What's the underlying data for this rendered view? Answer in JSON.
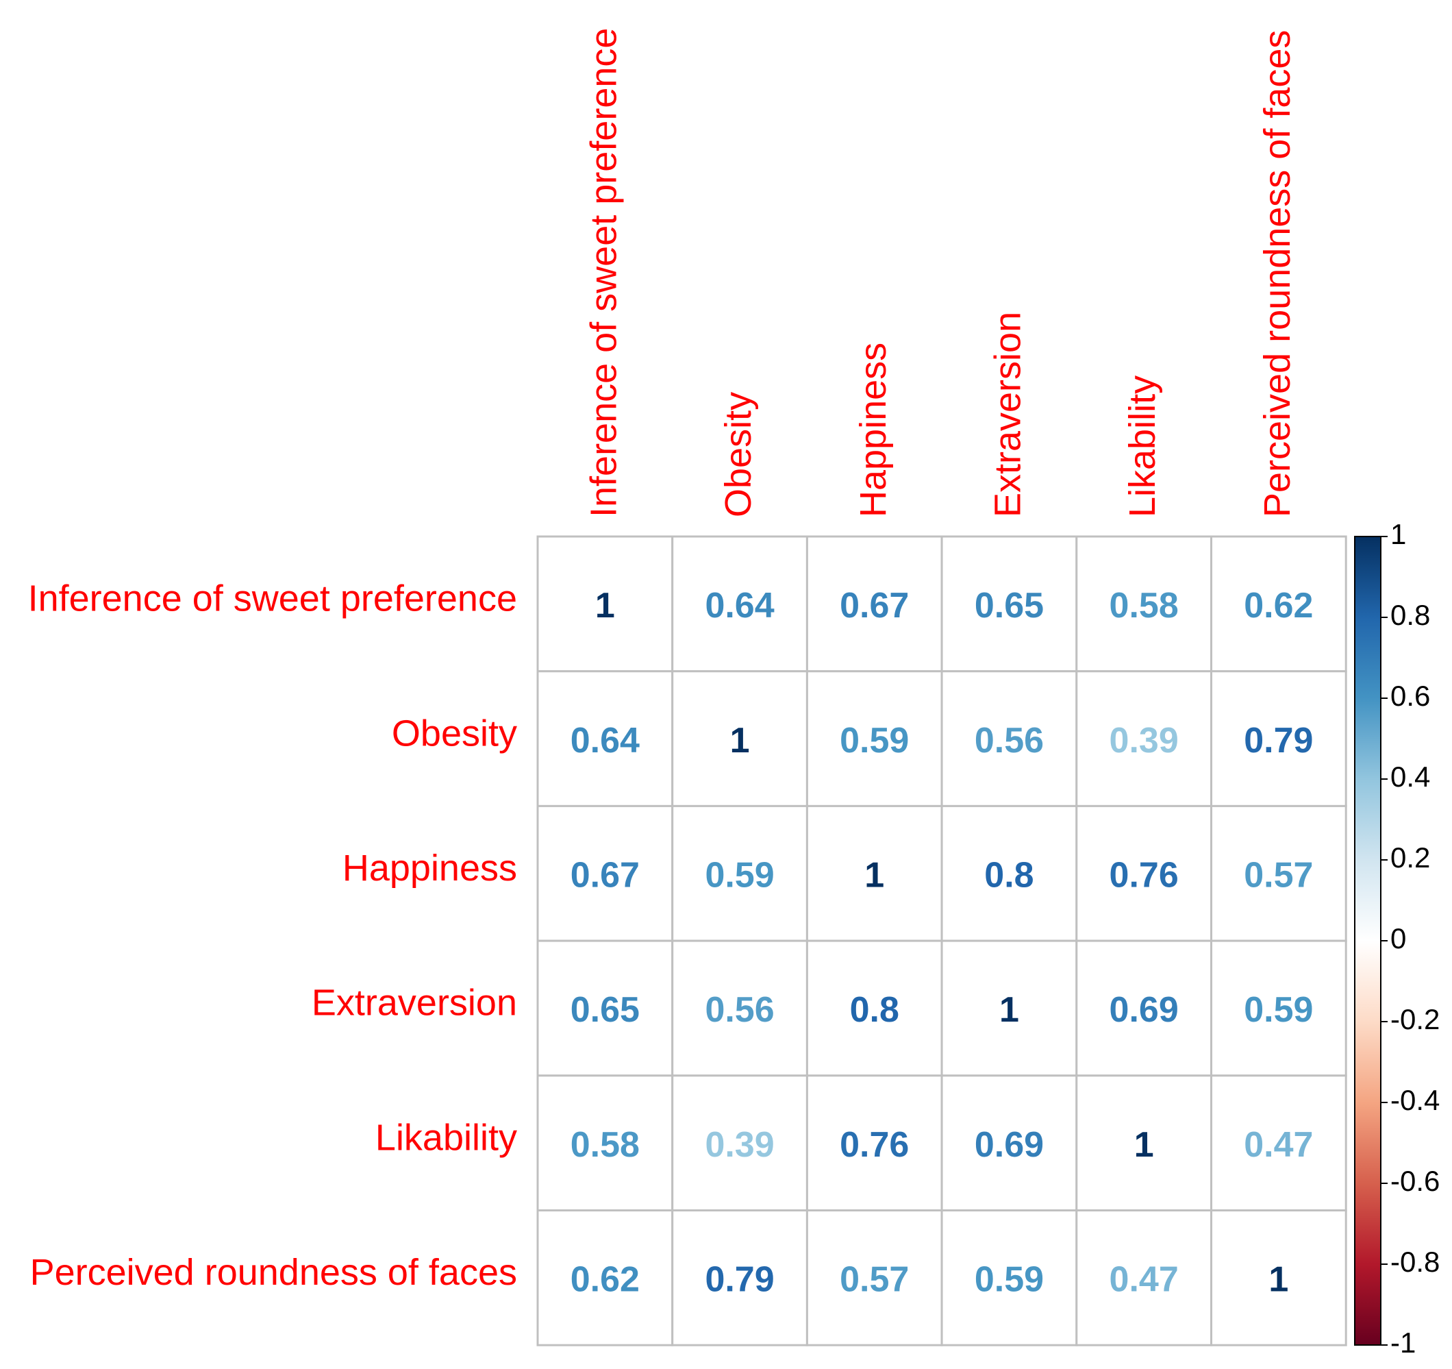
{
  "chart_data": {
    "type": "heatmap",
    "variables": [
      "Inference of sweet preference",
      "Obesity",
      "Happiness",
      "Extraversion",
      "Likability",
      "Perceived roundness of faces"
    ],
    "matrix": [
      [
        1,
        0.64,
        0.67,
        0.65,
        0.58,
        0.62
      ],
      [
        0.64,
        1,
        0.59,
        0.56,
        0.39,
        0.79
      ],
      [
        0.67,
        0.59,
        1,
        0.8,
        0.76,
        0.57
      ],
      [
        0.65,
        0.56,
        0.8,
        1,
        0.69,
        0.59
      ],
      [
        0.58,
        0.39,
        0.76,
        0.69,
        1,
        0.47
      ],
      [
        0.62,
        0.79,
        0.57,
        0.59,
        0.47,
        1
      ]
    ],
    "color_scale": {
      "range": [
        -1,
        1
      ],
      "ticks": [
        1,
        0.8,
        0.6,
        0.4,
        0.2,
        0,
        -0.2,
        -0.4,
        -0.6,
        -0.8,
        -1
      ],
      "tick_labels": [
        "1",
        "0.8",
        "0.6",
        "0.4",
        "0.2",
        "0",
        "-0.2",
        "-0.4",
        "-0.6",
        "-0.8",
        "-1"
      ]
    },
    "label_color": "#ff0000",
    "grid_color": "#c0c0c0",
    "legend_position": "right"
  }
}
